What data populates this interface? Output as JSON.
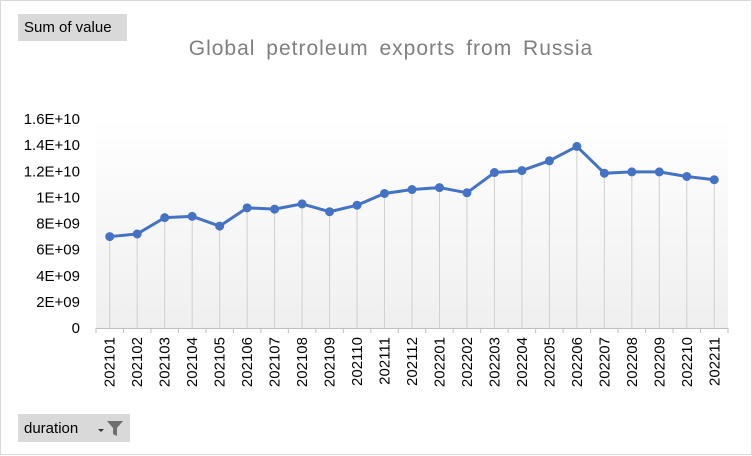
{
  "field_buttons": {
    "value_field": "Sum of value",
    "axis_field": "duration",
    "axis_field_icon": "filter-icon"
  },
  "chart_data": {
    "type": "line",
    "title": "Global petroleum exports from Russia",
    "xlabel": "",
    "ylabel": "",
    "categories": [
      "202101",
      "202102",
      "202103",
      "202104",
      "202105",
      "202106",
      "202107",
      "202108",
      "202109",
      "202110",
      "202111",
      "202112",
      "202201",
      "202202",
      "202203",
      "202204",
      "202205",
      "202206",
      "202207",
      "202208",
      "202209",
      "202210",
      "202211"
    ],
    "series": [
      {
        "values": [
          7000000000.0,
          7200000000.0,
          8450000000.0,
          8550000000.0,
          7800000000.0,
          9200000000.0,
          9100000000.0,
          9500000000.0,
          8900000000.0,
          9400000000.0,
          10300000000.0,
          10600000000.0,
          10750000000.0,
          10350000000.0,
          11900000000.0,
          12050000000.0,
          12800000000.0,
          13900000000.0,
          11850000000.0,
          11950000000.0,
          11950000000.0,
          11600000000.0,
          11350000000.0
        ],
        "color": "#4472c4"
      }
    ],
    "ylim": [
      0,
      16000000000
    ],
    "ytick_values": [
      0,
      2000000000,
      4000000000,
      6000000000,
      8000000000,
      10000000000,
      12000000000,
      14000000000,
      16000000000
    ],
    "ytick_labels": [
      "0",
      "2E+09",
      "4E+09",
      "6E+09",
      "8E+09",
      "1E+10",
      "1.2E+10",
      "1.4E+10",
      "1.6E+10"
    ],
    "grid": "vertical drop lines",
    "legend": "none"
  }
}
